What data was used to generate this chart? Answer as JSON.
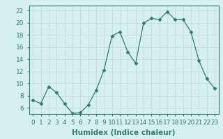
{
  "x": [
    0,
    1,
    2,
    3,
    4,
    5,
    6,
    7,
    8,
    9,
    10,
    11,
    12,
    13,
    14,
    15,
    16,
    17,
    18,
    19,
    20,
    21,
    22,
    23
  ],
  "y": [
    7.3,
    6.7,
    9.5,
    8.5,
    6.7,
    5.1,
    5.2,
    6.5,
    8.9,
    12.2,
    17.8,
    18.5,
    15.2,
    13.3,
    19.9,
    20.7,
    20.5,
    21.8,
    20.5,
    20.5,
    18.5,
    13.8,
    10.8,
    9.2
  ],
  "xlabel": "Humidex (Indice chaleur)",
  "ylabel": "",
  "ylim": [
    5.0,
    22.8
  ],
  "xlim": [
    -0.5,
    23.5
  ],
  "yticks": [
    6,
    8,
    10,
    12,
    14,
    16,
    18,
    20,
    22
  ],
  "xtick_labels": [
    "0",
    "1",
    "2",
    "3",
    "4",
    "5",
    "6",
    "7",
    "8",
    "9",
    "10",
    "11",
    "12",
    "13",
    "14",
    "15",
    "16",
    "17",
    "18",
    "19",
    "20",
    "21",
    "22",
    "23"
  ],
  "line_color": "#2e7d6e",
  "marker": "D",
  "marker_size": 2.5,
  "bg_color": "#d6f0ef",
  "grid_color": "#c0d8d8",
  "label_fontsize": 7.5,
  "tick_fontsize": 6.5
}
